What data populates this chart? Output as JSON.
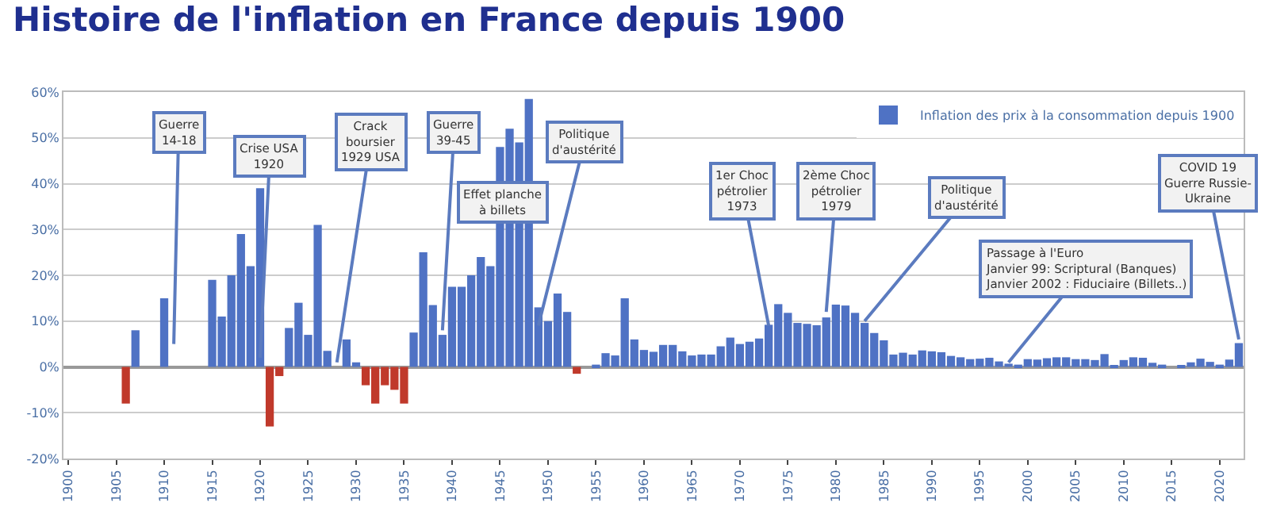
{
  "chart_data": {
    "type": "bar",
    "title": "Histoire de l'inflation en France depuis 1900",
    "x": [
      1900,
      1901,
      1902,
      1903,
      1904,
      1905,
      1906,
      1907,
      1908,
      1909,
      1910,
      1911,
      1912,
      1913,
      1914,
      1915,
      1916,
      1917,
      1918,
      1919,
      1920,
      1921,
      1922,
      1923,
      1924,
      1925,
      1926,
      1927,
      1928,
      1929,
      1930,
      1931,
      1932,
      1933,
      1934,
      1935,
      1936,
      1937,
      1938,
      1939,
      1940,
      1941,
      1942,
      1943,
      1944,
      1945,
      1946,
      1947,
      1948,
      1949,
      1950,
      1951,
      1952,
      1953,
      1954,
      1955,
      1956,
      1957,
      1958,
      1959,
      1960,
      1961,
      1962,
      1963,
      1964,
      1965,
      1966,
      1967,
      1968,
      1969,
      1970,
      1971,
      1972,
      1973,
      1974,
      1975,
      1976,
      1977,
      1978,
      1979,
      1980,
      1981,
      1982,
      1983,
      1984,
      1985,
      1986,
      1987,
      1988,
      1989,
      1990,
      1991,
      1992,
      1993,
      1994,
      1995,
      1996,
      1997,
      1998,
      1999,
      2000,
      2001,
      2002,
      2003,
      2004,
      2005,
      2006,
      2007,
      2008,
      2009,
      2010,
      2011,
      2012,
      2013,
      2014,
      2015,
      2016,
      2017,
      2018,
      2019,
      2020,
      2021,
      2022
    ],
    "series": [
      {
        "name": "Inflation des prix à la consommation depuis 1900",
        "values": [
          0,
          0,
          0,
          0,
          0,
          0,
          -8,
          8,
          0,
          0,
          15,
          0,
          0,
          0,
          0,
          19,
          11,
          20,
          29,
          22,
          39,
          -13,
          -2,
          8.5,
          14,
          7,
          31,
          3.5,
          0,
          6,
          1,
          -4,
          -8,
          -4,
          -5,
          -8,
          7.5,
          25,
          13.5,
          7,
          17.5,
          17.5,
          20,
          24,
          22,
          48,
          52,
          49,
          58.5,
          13,
          10,
          16,
          12,
          -1.5,
          0,
          0.5,
          3,
          2.5,
          15,
          6,
          3.7,
          3.3,
          4.8,
          4.8,
          3.4,
          2.5,
          2.7,
          2.7,
          4.5,
          6.4,
          5,
          5.5,
          6.2,
          9.2,
          13.7,
          11.8,
          9.6,
          9.4,
          9.1,
          10.8,
          13.6,
          13.4,
          11.8,
          9.6,
          7.4,
          5.8,
          2.7,
          3.1,
          2.7,
          3.6,
          3.4,
          3.2,
          2.4,
          2.1,
          1.7,
          1.8,
          2,
          1.2,
          0.7,
          0.5,
          1.7,
          1.6,
          1.9,
          2.1,
          2.1,
          1.7,
          1.7,
          1.5,
          2.8,
          0.1,
          1.5,
          2.1,
          2,
          0.9,
          0.5,
          0,
          0.2,
          1,
          1.8,
          1.1,
          0.5,
          1.6,
          5.2
        ],
        "colors": [
          "#4f72c4",
          "#4f72c4",
          "#4f72c4",
          "#4f72c4",
          "#4f72c4",
          "#4f72c4",
          "#c0392b",
          "#4f72c4",
          "#4f72c4",
          "#4f72c4",
          "#4f72c4",
          "#4f72c4",
          "#4f72c4",
          "#4f72c4",
          "#4f72c4",
          "#4f72c4",
          "#4f72c4",
          "#4f72c4",
          "#4f72c4",
          "#4f72c4",
          "#4f72c4",
          "#c0392b",
          "#c0392b",
          "#4f72c4",
          "#4f72c4",
          "#4f72c4",
          "#4f72c4",
          "#4f72c4",
          "#4f72c4",
          "#4f72c4",
          "#4f72c4",
          "#c0392b",
          "#c0392b",
          "#c0392b",
          "#c0392b",
          "#c0392b",
          "#4f72c4",
          "#4f72c4",
          "#4f72c4",
          "#4f72c4",
          "#4f72c4",
          "#4f72c4",
          "#4f72c4",
          "#4f72c4",
          "#4f72c4",
          "#4f72c4",
          "#4f72c4",
          "#4f72c4",
          "#4f72c4",
          "#4f72c4",
          "#4f72c4",
          "#4f72c4",
          "#4f72c4",
          "#c0392b",
          "#4f72c4",
          "#4f72c4",
          "#4f72c4",
          "#4f72c4",
          "#4f72c4",
          "#4f72c4",
          "#4f72c4",
          "#4f72c4",
          "#4f72c4",
          "#4f72c4",
          "#4f72c4",
          "#4f72c4",
          "#4f72c4",
          "#4f72c4",
          "#4f72c4",
          "#4f72c4",
          "#4f72c4",
          "#4f72c4",
          "#4f72c4",
          "#4f72c4",
          "#4f72c4",
          "#4f72c4",
          "#4f72c4",
          "#4f72c4",
          "#4f72c4",
          "#4f72c4",
          "#4f72c4",
          "#4f72c4",
          "#4f72c4",
          "#4f72c4",
          "#4f72c4",
          "#4f72c4",
          "#4f72c4",
          "#4f72c4",
          "#4f72c4",
          "#4f72c4",
          "#4f72c4",
          "#4f72c4",
          "#4f72c4",
          "#4f72c4",
          "#4f72c4",
          "#4f72c4",
          "#4f72c4",
          "#4f72c4",
          "#4f72c4",
          "#4f72c4",
          "#4f72c4",
          "#4f72c4",
          "#4f72c4",
          "#4f72c4",
          "#4f72c4",
          "#4f72c4",
          "#4f72c4",
          "#4f72c4",
          "#4f72c4",
          "#4f72c4",
          "#4f72c4",
          "#4f72c4",
          "#4f72c4",
          "#4f72c4",
          "#4f72c4",
          "#4f72c4",
          "#4f72c4",
          "#4f72c4",
          "#4f72c4",
          "#4f72c4",
          "#4f72c4",
          "#4f72c4",
          "#4f72c4"
        ]
      }
    ],
    "xlim": [
      1899.5,
      2022.5
    ],
    "xticks": [
      1900,
      1905,
      1910,
      1915,
      1920,
      1925,
      1930,
      1935,
      1940,
      1945,
      1950,
      1955,
      1960,
      1965,
      1970,
      1975,
      1980,
      1985,
      1990,
      1995,
      2000,
      2005,
      2010,
      2015,
      2020
    ],
    "ylim": [
      -20,
      60
    ],
    "yticks": [
      {
        "value": -20,
        "label": "-20%"
      },
      {
        "value": -10,
        "label": "-10%"
      },
      {
        "value": 0,
        "label": "0%"
      },
      {
        "value": 10,
        "label": "10%"
      },
      {
        "value": 20,
        "label": "20%"
      },
      {
        "value": 30,
        "label": "30%"
      },
      {
        "value": 40,
        "label": "40%"
      },
      {
        "value": 50,
        "label": "50%"
      },
      {
        "value": 60,
        "label": "60%"
      }
    ],
    "grid": "y",
    "legend": "top right",
    "annotations": [
      {
        "text": "Guerre\n14-18",
        "x": 1911,
        "y": 5
      },
      {
        "text": "Crise USA\n1920",
        "x": 1920,
        "y": 2
      },
      {
        "text": "Crack\nboursier\n1929 USA",
        "x": 1928,
        "y": 1
      },
      {
        "text": "Guerre\n39-45",
        "x": 1939,
        "y": 8
      },
      "Effet planche\nà billets",
      {
        "text": "Politique\nd'austérité",
        "x": 1949,
        "y": 9
      },
      {
        "text": "1er Choc\npétrolier\n1973",
        "x": 1973,
        "y": 9
      },
      {
        "text": "2ème Choc\npétrolier\n1979",
        "x": 1979,
        "y": 12
      },
      {
        "text": "Politique\nd'austérité",
        "x": 1983,
        "y": 10
      },
      {
        "text": "Passage à l'Euro\nJanvier 99: Scriptural (Banques)\nJanvier 2002 : Fiduciaire (Billets..)",
        "x": 1998,
        "y": 1
      },
      {
        "text": "COVID 19\nGuerre Russie-\nUkraine",
        "x": 2022,
        "y": 6
      }
    ]
  }
}
